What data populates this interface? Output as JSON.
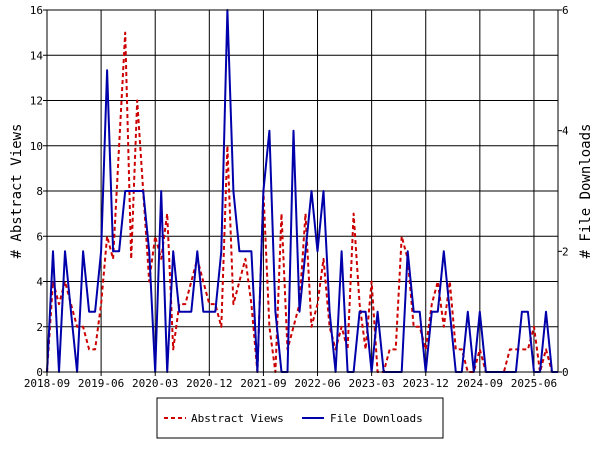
{
  "chart_data": {
    "type": "line",
    "title": "",
    "xlabel": "",
    "ylabel_left": "# Abstract Views",
    "ylabel_right": "# File Downloads",
    "ylim_left": [
      0,
      16
    ],
    "ylim_right": [
      0,
      6
    ],
    "yticks_left": [
      "0",
      "2",
      "4",
      "6",
      "8",
      "10",
      "12",
      "14",
      "16"
    ],
    "yticks_right": [
      "0",
      "2",
      "4",
      "6"
    ],
    "xticks": [
      "2018-09",
      "2019-06",
      "2020-03",
      "2020-12",
      "2021-09",
      "2022-06",
      "2023-03",
      "2023-12",
      "2024-09",
      "2025-06"
    ],
    "x_range": [
      "2018-09",
      "2025-10"
    ],
    "grid": true,
    "legend_position": "bottom",
    "series": [
      {
        "name": "Abstract Views",
        "axis": "left",
        "color": "#cc0000",
        "dash": "dashed",
        "x": [
          "2018-09",
          "2018-10",
          "2018-11",
          "2018-12",
          "2019-01",
          "2019-02",
          "2019-03",
          "2019-04",
          "2019-05",
          "2019-06",
          "2019-07",
          "2019-08",
          "2019-09",
          "2019-10",
          "2019-11",
          "2019-12",
          "2020-01",
          "2020-02",
          "2020-03",
          "2020-04",
          "2020-05",
          "2020-06",
          "2020-07",
          "2020-08",
          "2020-09",
          "2020-10",
          "2020-11",
          "2020-12",
          "2021-01",
          "2021-02",
          "2021-03",
          "2021-04",
          "2021-05",
          "2021-06",
          "2021-07",
          "2021-08",
          "2021-09",
          "2021-10",
          "2021-11",
          "2021-12",
          "2022-01",
          "2022-02",
          "2022-03",
          "2022-04",
          "2022-05",
          "2022-06",
          "2022-07",
          "2022-08",
          "2022-09",
          "2022-10",
          "2022-11",
          "2022-12",
          "2023-01",
          "2023-02",
          "2023-03",
          "2023-04",
          "2023-05",
          "2023-06",
          "2023-07",
          "2023-08",
          "2023-09",
          "2023-10",
          "2023-11",
          "2023-12",
          "2024-01",
          "2024-02",
          "2024-03",
          "2024-04",
          "2024-05",
          "2024-06",
          "2024-07",
          "2024-08",
          "2024-09",
          "2024-10",
          "2024-11",
          "2024-12",
          "2025-01",
          "2025-02",
          "2025-03",
          "2025-04",
          "2025-05",
          "2025-06",
          "2025-07",
          "2025-08",
          "2025-09",
          "2025-10"
        ],
        "values": [
          0,
          4,
          3,
          4,
          3,
          2,
          2,
          1,
          1,
          3,
          6,
          5,
          10,
          15,
          5,
          12,
          8,
          4,
          6,
          5,
          7,
          1,
          3,
          3,
          4,
          5,
          4,
          3,
          3,
          2,
          10,
          3,
          4,
          5,
          3,
          0,
          8,
          2,
          0,
          7,
          1,
          2,
          3,
          7,
          2,
          3,
          5,
          2,
          1,
          2,
          1,
          7,
          3,
          1,
          4,
          0,
          0,
          1,
          1,
          6,
          5,
          2,
          2,
          1,
          3,
          4,
          2,
          4,
          1,
          1,
          0,
          0,
          1,
          0,
          0,
          0,
          0,
          1,
          1,
          1,
          1,
          2,
          0,
          1,
          0,
          0
        ]
      },
      {
        "name": "File Downloads",
        "axis": "right",
        "color": "#0000aa",
        "dash": "solid",
        "x": [
          "2018-09",
          "2018-10",
          "2018-11",
          "2018-12",
          "2019-01",
          "2019-02",
          "2019-03",
          "2019-04",
          "2019-05",
          "2019-06",
          "2019-07",
          "2019-08",
          "2019-09",
          "2019-10",
          "2019-11",
          "2019-12",
          "2020-01",
          "2020-02",
          "2020-03",
          "2020-04",
          "2020-05",
          "2020-06",
          "2020-07",
          "2020-08",
          "2020-09",
          "2020-10",
          "2020-11",
          "2020-12",
          "2021-01",
          "2021-02",
          "2021-03",
          "2021-04",
          "2021-05",
          "2021-06",
          "2021-07",
          "2021-08",
          "2021-09",
          "2021-10",
          "2021-11",
          "2021-12",
          "2022-01",
          "2022-02",
          "2022-03",
          "2022-04",
          "2022-05",
          "2022-06",
          "2022-07",
          "2022-08",
          "2022-09",
          "2022-10",
          "2022-11",
          "2022-12",
          "2023-01",
          "2023-02",
          "2023-03",
          "2023-04",
          "2023-05",
          "2023-06",
          "2023-07",
          "2023-08",
          "2023-09",
          "2023-10",
          "2023-11",
          "2023-12",
          "2024-01",
          "2024-02",
          "2024-03",
          "2024-04",
          "2024-05",
          "2024-06",
          "2024-07",
          "2024-08",
          "2024-09",
          "2024-10",
          "2024-11",
          "2024-12",
          "2025-01",
          "2025-02",
          "2025-03",
          "2025-04",
          "2025-05",
          "2025-06",
          "2025-07",
          "2025-08",
          "2025-09",
          "2025-10"
        ],
        "values": [
          0,
          2,
          0,
          2,
          1,
          0,
          2,
          1,
          1,
          2,
          5,
          2,
          2,
          3,
          3,
          3,
          3,
          2,
          0,
          3,
          0,
          2,
          1,
          1,
          1,
          2,
          1,
          1,
          1,
          2,
          6,
          3,
          2,
          2,
          2,
          0,
          3,
          4,
          1,
          0,
          0,
          4,
          1,
          2,
          3,
          2,
          3,
          1,
          0,
          2,
          0,
          0,
          1,
          1,
          0,
          1,
          0,
          0,
          0,
          0,
          2,
          1,
          1,
          0,
          1,
          1,
          2,
          1,
          0,
          0,
          1,
          0,
          1,
          0,
          0,
          0,
          0,
          0,
          0,
          1,
          1,
          0,
          0,
          1,
          0,
          0
        ]
      }
    ]
  }
}
